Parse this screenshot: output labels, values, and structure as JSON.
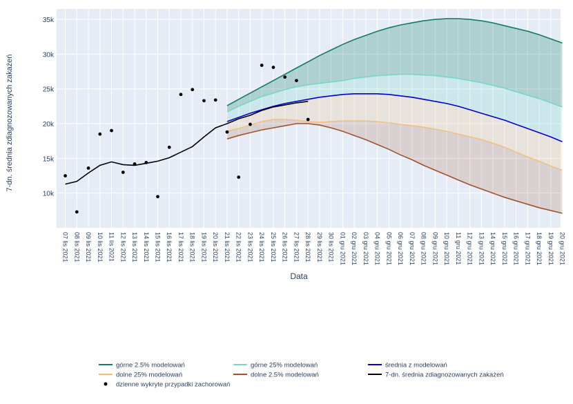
{
  "chart_data": {
    "type": "line",
    "xlabel": "Data",
    "ylabel": "7-dn. średnia zdiagnozowanych zakażeń",
    "ylim": [
      5000,
      36500
    ],
    "grid": true,
    "legend_position": "bottom",
    "colors": {
      "plot_background": "#E5ECF6",
      "grid": "#ffffff",
      "upper_2_5": "#117A65",
      "upper_25": "#76D7C4",
      "mean": "#0000CD",
      "lower_25": "#F0C080",
      "lower_2_5": "#A0522D",
      "observed_avg": "#000000",
      "daily_points": "#000000",
      "band_outer_upper_fill": "rgba(17,122,101,0.25)",
      "band_inner_upper_fill": "rgba(118,215,196,0.22)",
      "band_inner_lower_fill": "rgba(240,192,128,0.22)",
      "band_outer_lower_fill": "rgba(160,82,45,0.18)"
    },
    "x": [
      "07 lis 2021",
      "08 lis 2021",
      "09 lis 2021",
      "10 lis 2021",
      "11 lis 2021",
      "12 lis 2021",
      "13 lis 2021",
      "14 lis 2021",
      "15 lis 2021",
      "16 lis 2021",
      "17 lis 2021",
      "18 lis 2021",
      "19 lis 2021",
      "20 lis 2021",
      "21 lis 2021",
      "22 lis 2021",
      "23 lis 2021",
      "24 lis 2021",
      "25 lis 2021",
      "26 lis 2021",
      "27 lis 2021",
      "28 lis 2021",
      "29 lis 2021",
      "30 lis 2021",
      "01 gru 2021",
      "02 gru 2021",
      "03 gru 2021",
      "04 gru 2021",
      "05 gru 2021",
      "06 gru 2021",
      "07 gru 2021",
      "08 gru 2021",
      "09 gru 2021",
      "10 gru 2021",
      "11 gru 2021",
      "12 gru 2021",
      "13 gru 2021",
      "14 gru 2021",
      "15 gru 2021",
      "16 gru 2021",
      "17 gru 2021",
      "18 gru 2021",
      "19 gru 2021",
      "20 gru 2021"
    ],
    "yticks": [
      10000,
      15000,
      20000,
      25000,
      30000,
      35000
    ],
    "ytick_labels": [
      "10k",
      "15k",
      "20k",
      "25k",
      "30k",
      "35k"
    ],
    "series": [
      {
        "name": "górne 2.5% modelowań",
        "key": "upper_2_5",
        "x": [
          "21 lis 2021",
          "22 lis 2021",
          "23 lis 2021",
          "24 lis 2021",
          "25 lis 2021",
          "26 lis 2021",
          "27 lis 2021",
          "28 lis 2021",
          "29 lis 2021",
          "30 lis 2021",
          "01 gru 2021",
          "02 gru 2021",
          "03 gru 2021",
          "04 gru 2021",
          "05 gru 2021",
          "06 gru 2021",
          "07 gru 2021",
          "08 gru 2021",
          "09 gru 2021",
          "10 gru 2021",
          "11 gru 2021",
          "12 gru 2021",
          "13 gru 2021",
          "14 gru 2021",
          "15 gru 2021",
          "16 gru 2021",
          "17 gru 2021",
          "18 gru 2021",
          "19 gru 2021",
          "20 gru 2021"
        ],
        "values": [
          22600,
          23500,
          24400,
          25300,
          26200,
          27100,
          28000,
          28900,
          29800,
          30600,
          31400,
          32100,
          32700,
          33300,
          33800,
          34200,
          34500,
          34800,
          35000,
          35100,
          35100,
          35000,
          34800,
          34500,
          34100,
          33700,
          33300,
          32800,
          32200,
          31600
        ]
      },
      {
        "name": "górne 25% modelowań",
        "key": "upper_25",
        "x": [
          "21 lis 2021",
          "22 lis 2021",
          "23 lis 2021",
          "24 lis 2021",
          "25 lis 2021",
          "26 lis 2021",
          "27 lis 2021",
          "28 lis 2021",
          "29 lis 2021",
          "30 lis 2021",
          "01 gru 2021",
          "02 gru 2021",
          "03 gru 2021",
          "04 gru 2021",
          "05 gru 2021",
          "06 gru 2021",
          "07 gru 2021",
          "08 gru 2021",
          "09 gru 2021",
          "10 gru 2021",
          "11 gru 2021",
          "12 gru 2021",
          "13 gru 2021",
          "14 gru 2021",
          "15 gru 2021",
          "16 gru 2021",
          "17 gru 2021",
          "18 gru 2021",
          "19 gru 2021",
          "20 gru 2021"
        ],
        "values": [
          21700,
          22500,
          23200,
          23900,
          24400,
          24900,
          25300,
          25600,
          25800,
          26000,
          26200,
          26500,
          26700,
          26900,
          27000,
          27100,
          27100,
          27000,
          26900,
          26700,
          26500,
          26200,
          25900,
          25500,
          25100,
          24600,
          24100,
          23600,
          23000,
          22400
        ]
      },
      {
        "name": "średnia z modelowań",
        "key": "mean",
        "x": [
          "21 lis 2021",
          "22 lis 2021",
          "23 lis 2021",
          "24 lis 2021",
          "25 lis 2021",
          "26 lis 2021",
          "27 lis 2021",
          "28 lis 2021",
          "29 lis 2021",
          "30 lis 2021",
          "01 gru 2021",
          "02 gru 2021",
          "03 gru 2021",
          "04 gru 2021",
          "05 gru 2021",
          "06 gru 2021",
          "07 gru 2021",
          "08 gru 2021",
          "09 gru 2021",
          "10 gru 2021",
          "11 gru 2021",
          "12 gru 2021",
          "13 gru 2021",
          "14 gru 2021",
          "15 gru 2021",
          "16 gru 2021",
          "17 gru 2021",
          "18 gru 2021",
          "19 gru 2021",
          "20 gru 2021"
        ],
        "values": [
          20300,
          20900,
          21500,
          22000,
          22500,
          22900,
          23200,
          23500,
          23800,
          24000,
          24200,
          24300,
          24300,
          24300,
          24200,
          24000,
          23800,
          23500,
          23200,
          22900,
          22500,
          22000,
          21500,
          21000,
          20500,
          19900,
          19300,
          18700,
          18100,
          17400
        ]
      },
      {
        "name": "dolne 25% modelowań",
        "key": "lower_25",
        "x": [
          "21 lis 2021",
          "22 lis 2021",
          "23 lis 2021",
          "24 lis 2021",
          "25 lis 2021",
          "26 lis 2021",
          "27 lis 2021",
          "28 lis 2021",
          "29 lis 2021",
          "30 lis 2021",
          "01 gru 2021",
          "02 gru 2021",
          "03 gru 2021",
          "04 gru 2021",
          "05 gru 2021",
          "06 gru 2021",
          "07 gru 2021",
          "08 gru 2021",
          "09 gru 2021",
          "10 gru 2021",
          "11 gru 2021",
          "12 gru 2021",
          "13 gru 2021",
          "14 gru 2021",
          "15 gru 2021",
          "16 gru 2021",
          "17 gru 2021",
          "18 gru 2021",
          "19 gru 2021",
          "20 gru 2021"
        ],
        "values": [
          18900,
          19300,
          19800,
          20300,
          20600,
          20600,
          20500,
          20300,
          20200,
          20300,
          20400,
          20400,
          20400,
          20300,
          20100,
          19900,
          19700,
          19500,
          19200,
          18900,
          18500,
          18100,
          17700,
          17200,
          16600,
          15900,
          15200,
          14600,
          13900,
          13300
        ]
      },
      {
        "name": "dolne 2.5% modelowań",
        "key": "lower_2_5",
        "x": [
          "21 lis 2021",
          "22 lis 2021",
          "23 lis 2021",
          "24 lis 2021",
          "25 lis 2021",
          "26 lis 2021",
          "27 lis 2021",
          "28 lis 2021",
          "29 lis 2021",
          "30 lis 2021",
          "01 gru 2021",
          "02 gru 2021",
          "03 gru 2021",
          "04 gru 2021",
          "05 gru 2021",
          "06 gru 2021",
          "07 gru 2021",
          "08 gru 2021",
          "09 gru 2021",
          "10 gru 2021",
          "11 gru 2021",
          "12 gru 2021",
          "13 gru 2021",
          "14 gru 2021",
          "15 gru 2021",
          "16 gru 2021",
          "17 gru 2021",
          "18 gru 2021",
          "19 gru 2021",
          "20 gru 2021"
        ],
        "values": [
          17800,
          18300,
          18700,
          19100,
          19400,
          19700,
          20000,
          20000,
          19800,
          19400,
          18900,
          18300,
          17700,
          17000,
          16300,
          15500,
          14800,
          14000,
          13300,
          12600,
          11900,
          11200,
          10600,
          10000,
          9400,
          8900,
          8400,
          7900,
          7500,
          7100
        ]
      },
      {
        "name": "7-dn. średnia zdiagnozowanych zakażeń",
        "key": "observed_avg",
        "x": [
          "07 lis 2021",
          "08 lis 2021",
          "09 lis 2021",
          "10 lis 2021",
          "11 lis 2021",
          "12 lis 2021",
          "13 lis 2021",
          "14 lis 2021",
          "15 lis 2021",
          "16 lis 2021",
          "17 lis 2021",
          "18 lis 2021",
          "19 lis 2021",
          "20 lis 2021",
          "21 lis 2021",
          "22 lis 2021",
          "23 lis 2021",
          "24 lis 2021",
          "25 lis 2021",
          "26 lis 2021",
          "27 lis 2021",
          "28 lis 2021"
        ],
        "values": [
          11300,
          11700,
          12900,
          14000,
          14500,
          14100,
          14000,
          14300,
          14600,
          15100,
          15900,
          16700,
          18100,
          19400,
          20000,
          20700,
          21200,
          21900,
          22400,
          22700,
          23000,
          23200
        ]
      },
      {
        "name": "dzienne wykryte przypadki zachorowań",
        "key": "daily_points",
        "kind": "markers",
        "x": [
          "07 lis 2021",
          "08 lis 2021",
          "09 lis 2021",
          "10 lis 2021",
          "11 lis 2021",
          "12 lis 2021",
          "13 lis 2021",
          "14 lis 2021",
          "15 lis 2021",
          "16 lis 2021",
          "17 lis 2021",
          "18 lis 2021",
          "19 lis 2021",
          "20 lis 2021",
          "21 lis 2021",
          "22 lis 2021",
          "23 lis 2021",
          "24 lis 2021",
          "25 lis 2021",
          "26 lis 2021",
          "27 lis 2021",
          "28 lis 2021"
        ],
        "values": [
          12500,
          7300,
          13600,
          18500,
          19000,
          13000,
          14200,
          14400,
          9500,
          16600,
          24200,
          24900,
          23300,
          23400,
          18800,
          12300,
          19900,
          28400,
          28100,
          26700,
          26200,
          20600
        ]
      }
    ]
  }
}
